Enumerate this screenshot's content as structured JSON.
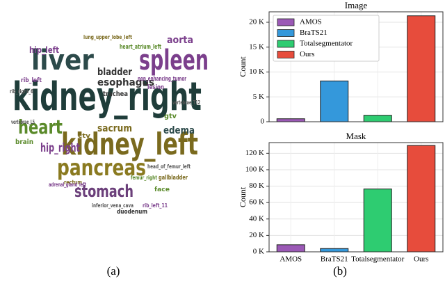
{
  "wordcloud": {
    "caption": "(a)",
    "words": [
      "kidney_right",
      "kidney_left",
      "spleen",
      "liver",
      "pancreas",
      "heart",
      "stomach",
      "hip_right",
      "bladder",
      "esophagus",
      "aorta",
      "sacrum",
      "edema",
      "hip_left",
      "brain",
      "gtv",
      "duodenum",
      "heart_atrium_left",
      "non_enhancing_tumor",
      "head_of_femur_left",
      "face",
      "rib_left_11",
      "inferior_vena_cava",
      "rectum",
      "ctv",
      "vertebrae_T12",
      "trachea",
      "rib_left",
      "lung_upper_lobe_left",
      "gallbladder",
      "vertebrae_L5",
      "lesion",
      "femur_right",
      "adrenal_gland_left",
      "rib_right_6"
    ]
  },
  "caption_b": "(b)",
  "chart_data": [
    {
      "type": "bar",
      "title": "Image",
      "ylabel": "Count",
      "categories": [
        "AMOS",
        "BraTS21",
        "Totalsegmentator",
        "Ours"
      ],
      "values": [
        600,
        8200,
        1300,
        21300
      ],
      "colors": [
        "#9b59b6",
        "#3498db",
        "#2ecc71",
        "#e74c3c"
      ],
      "ylim": [
        0,
        22100
      ],
      "yticks": [
        0,
        {
          "value": 5000,
          "label": "5 K"
        },
        {
          "value": 10000,
          "label": "10 K"
        },
        {
          "value": 15000,
          "label": "15 K"
        },
        {
          "value": 20000,
          "label": "20 K"
        }
      ],
      "grid": true,
      "legend": "upper left",
      "show_categories": false
    },
    {
      "type": "bar",
      "title": "Mask",
      "ylabel": "Count",
      "categories": [
        "AMOS",
        "BraTS21",
        "Totalsegmentator",
        "Ours"
      ],
      "values": [
        8600,
        4000,
        76500,
        129500
      ],
      "colors": [
        "#9b59b6",
        "#3498db",
        "#2ecc71",
        "#e74c3c"
      ],
      "ylim": [
        0,
        133000
      ],
      "yticks": [
        {
          "value": 0,
          "label": "0 K"
        },
        {
          "value": 20000,
          "label": "20 K"
        },
        {
          "value": 40000,
          "label": "40 K"
        },
        {
          "value": 60000,
          "label": "60 K"
        },
        {
          "value": 80000,
          "label": "80 K"
        },
        {
          "value": 100000,
          "label": "100 K"
        },
        {
          "value": 120000,
          "label": "120 K"
        }
      ],
      "grid": true,
      "show_categories": true
    }
  ]
}
